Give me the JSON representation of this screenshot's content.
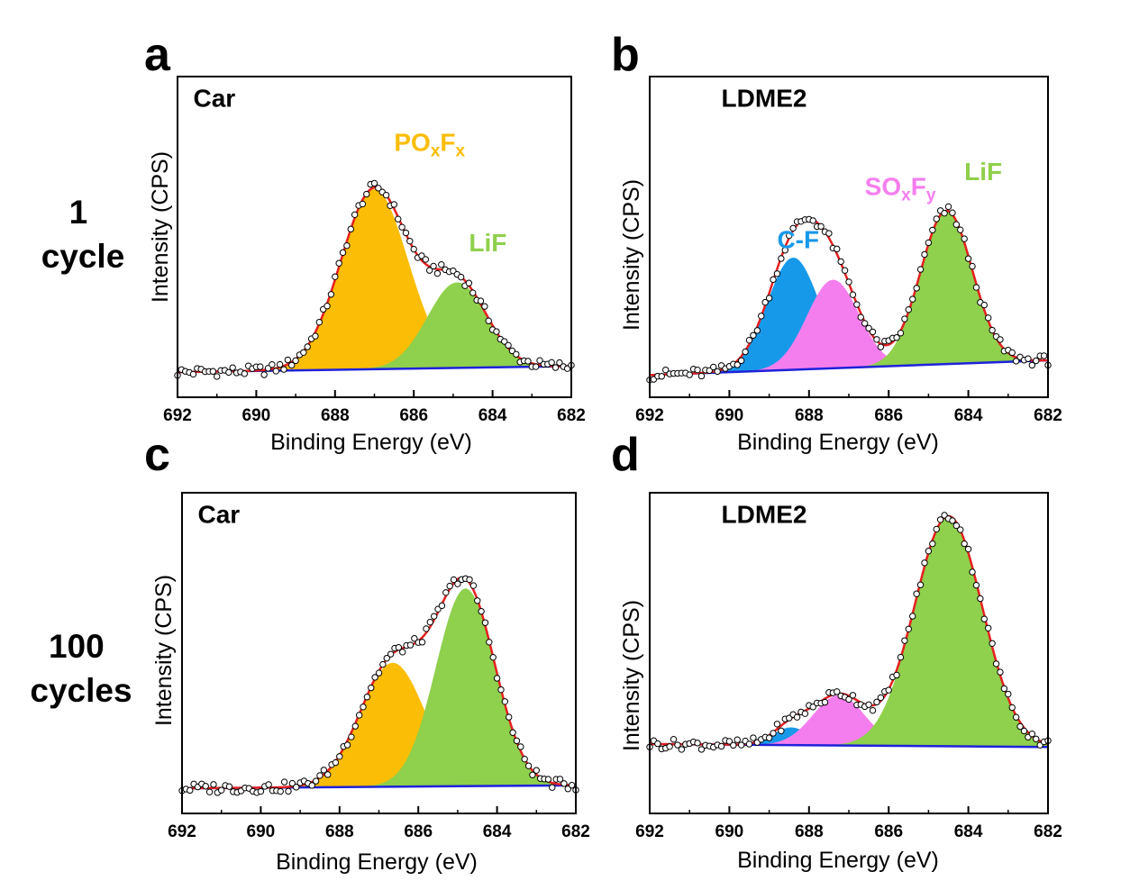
{
  "row_labels": [
    {
      "lines": [
        "1",
        "cycle"
      ]
    },
    {
      "lines": [
        "100",
        "cycles"
      ]
    }
  ],
  "colors": {
    "PO": "#FBBD05",
    "LiF": "#8FD04C",
    "CF": "#1799EA",
    "SO": "#F57EEE",
    "envelope": "#E51F1F",
    "background": "#1E22D9"
  },
  "chart_data": [
    {
      "panel": "a",
      "type": "line",
      "title": "Car",
      "xlabel": "Binding Energy (eV)",
      "ylabel": "Intensity (CPS)",
      "xlim": [
        692,
        682
      ],
      "x_ticks": [
        692,
        690,
        688,
        686,
        684,
        682
      ],
      "ylim": [
        0,
        1
      ],
      "y_ticks_shown": false,
      "baseline": {
        "start": 0.02,
        "end": 0.04
      },
      "components": [
        {
          "name": "PO",
          "label": [
            "PO",
            "x",
            "F",
            "x"
          ],
          "center": 687.0,
          "height": 0.61,
          "sigma": 0.85,
          "color_key": "PO"
        },
        {
          "name": "LiF",
          "label": [
            "LiF"
          ],
          "center": 684.9,
          "height": 0.29,
          "sigma": 0.75,
          "color_key": "LiF"
        }
      ],
      "label_anchor": [
        {
          "x": 686.5,
          "y": 0.77
        },
        {
          "x": 684.6,
          "y": 0.43
        }
      ],
      "sample_label_anchor": {
        "x": 691.6,
        "y": 0.92
      }
    },
    {
      "panel": "b",
      "type": "line",
      "title": "LDME2",
      "xlabel": "Binding Energy (eV)",
      "ylabel": "Intensity (CPS)",
      "xlim": [
        692,
        682
      ],
      "x_ticks": [
        692,
        690,
        688,
        686,
        684,
        682
      ],
      "ylim": [
        0,
        1
      ],
      "y_ticks_shown": false,
      "baseline": {
        "start": 0.01,
        "end": 0.06
      },
      "components": [
        {
          "name": "CF",
          "label": [
            "C-F"
          ],
          "center": 688.4,
          "height": 0.38,
          "sigma": 0.65,
          "color_key": "CF"
        },
        {
          "name": "SO",
          "label": [
            "SO",
            "x",
            "F",
            "y"
          ],
          "center": 687.4,
          "height": 0.3,
          "sigma": 0.65,
          "color_key": "SO"
        },
        {
          "name": "LiF",
          "label": [
            "LiF"
          ],
          "center": 684.55,
          "height": 0.52,
          "sigma": 0.65,
          "color_key": "LiF"
        }
      ],
      "label_anchor": [
        {
          "x": 688.8,
          "y": 0.44
        },
        {
          "x": 686.6,
          "y": 0.62
        },
        {
          "x": 684.1,
          "y": 0.67
        }
      ],
      "sample_label_anchor": {
        "x": 690.2,
        "y": 0.92
      }
    },
    {
      "panel": "c",
      "type": "line",
      "title": "Car",
      "xlabel": "Binding Energy (eV)",
      "ylabel": "Intensity (CPS)",
      "xlim": [
        692,
        682
      ],
      "x_ticks": [
        692,
        690,
        688,
        686,
        684,
        682
      ],
      "ylim": [
        0,
        1
      ],
      "y_ticks_shown": false,
      "baseline": {
        "start": 0.02,
        "end": 0.03
      },
      "components": [
        {
          "name": "PO",
          "label": [],
          "center": 686.65,
          "height": 0.42,
          "sigma": 0.82,
          "color_key": "PO"
        },
        {
          "name": "LiF",
          "label": [],
          "center": 684.8,
          "height": 0.67,
          "sigma": 0.75,
          "color_key": "LiF"
        }
      ],
      "label_anchor": [],
      "sample_label_anchor": {
        "x": 691.6,
        "y": 0.92
      }
    },
    {
      "panel": "d",
      "type": "line",
      "title": "LDME2",
      "xlabel": "Binding Energy (eV)",
      "ylabel": "Intensity (CPS)",
      "xlim": [
        692,
        682
      ],
      "x_ticks": [
        692,
        690,
        688,
        686,
        684,
        682
      ],
      "ylim": [
        0,
        1
      ],
      "y_ticks_shown": false,
      "baseline": {
        "start": 0.17,
        "end": 0.16
      },
      "components": [
        {
          "name": "CF",
          "label": [],
          "center": 688.45,
          "height": 0.06,
          "sigma": 0.45,
          "color_key": "CF"
        },
        {
          "name": "SO",
          "label": [],
          "center": 687.25,
          "height": 0.17,
          "sigma": 0.65,
          "color_key": "SO"
        },
        {
          "name": "LiF",
          "label": [],
          "center": 684.5,
          "height": 0.78,
          "sigma": 0.85,
          "color_key": "LiF"
        }
      ],
      "label_anchor": [],
      "sample_label_anchor": {
        "x": 690.2,
        "y": 0.92
      }
    }
  ]
}
